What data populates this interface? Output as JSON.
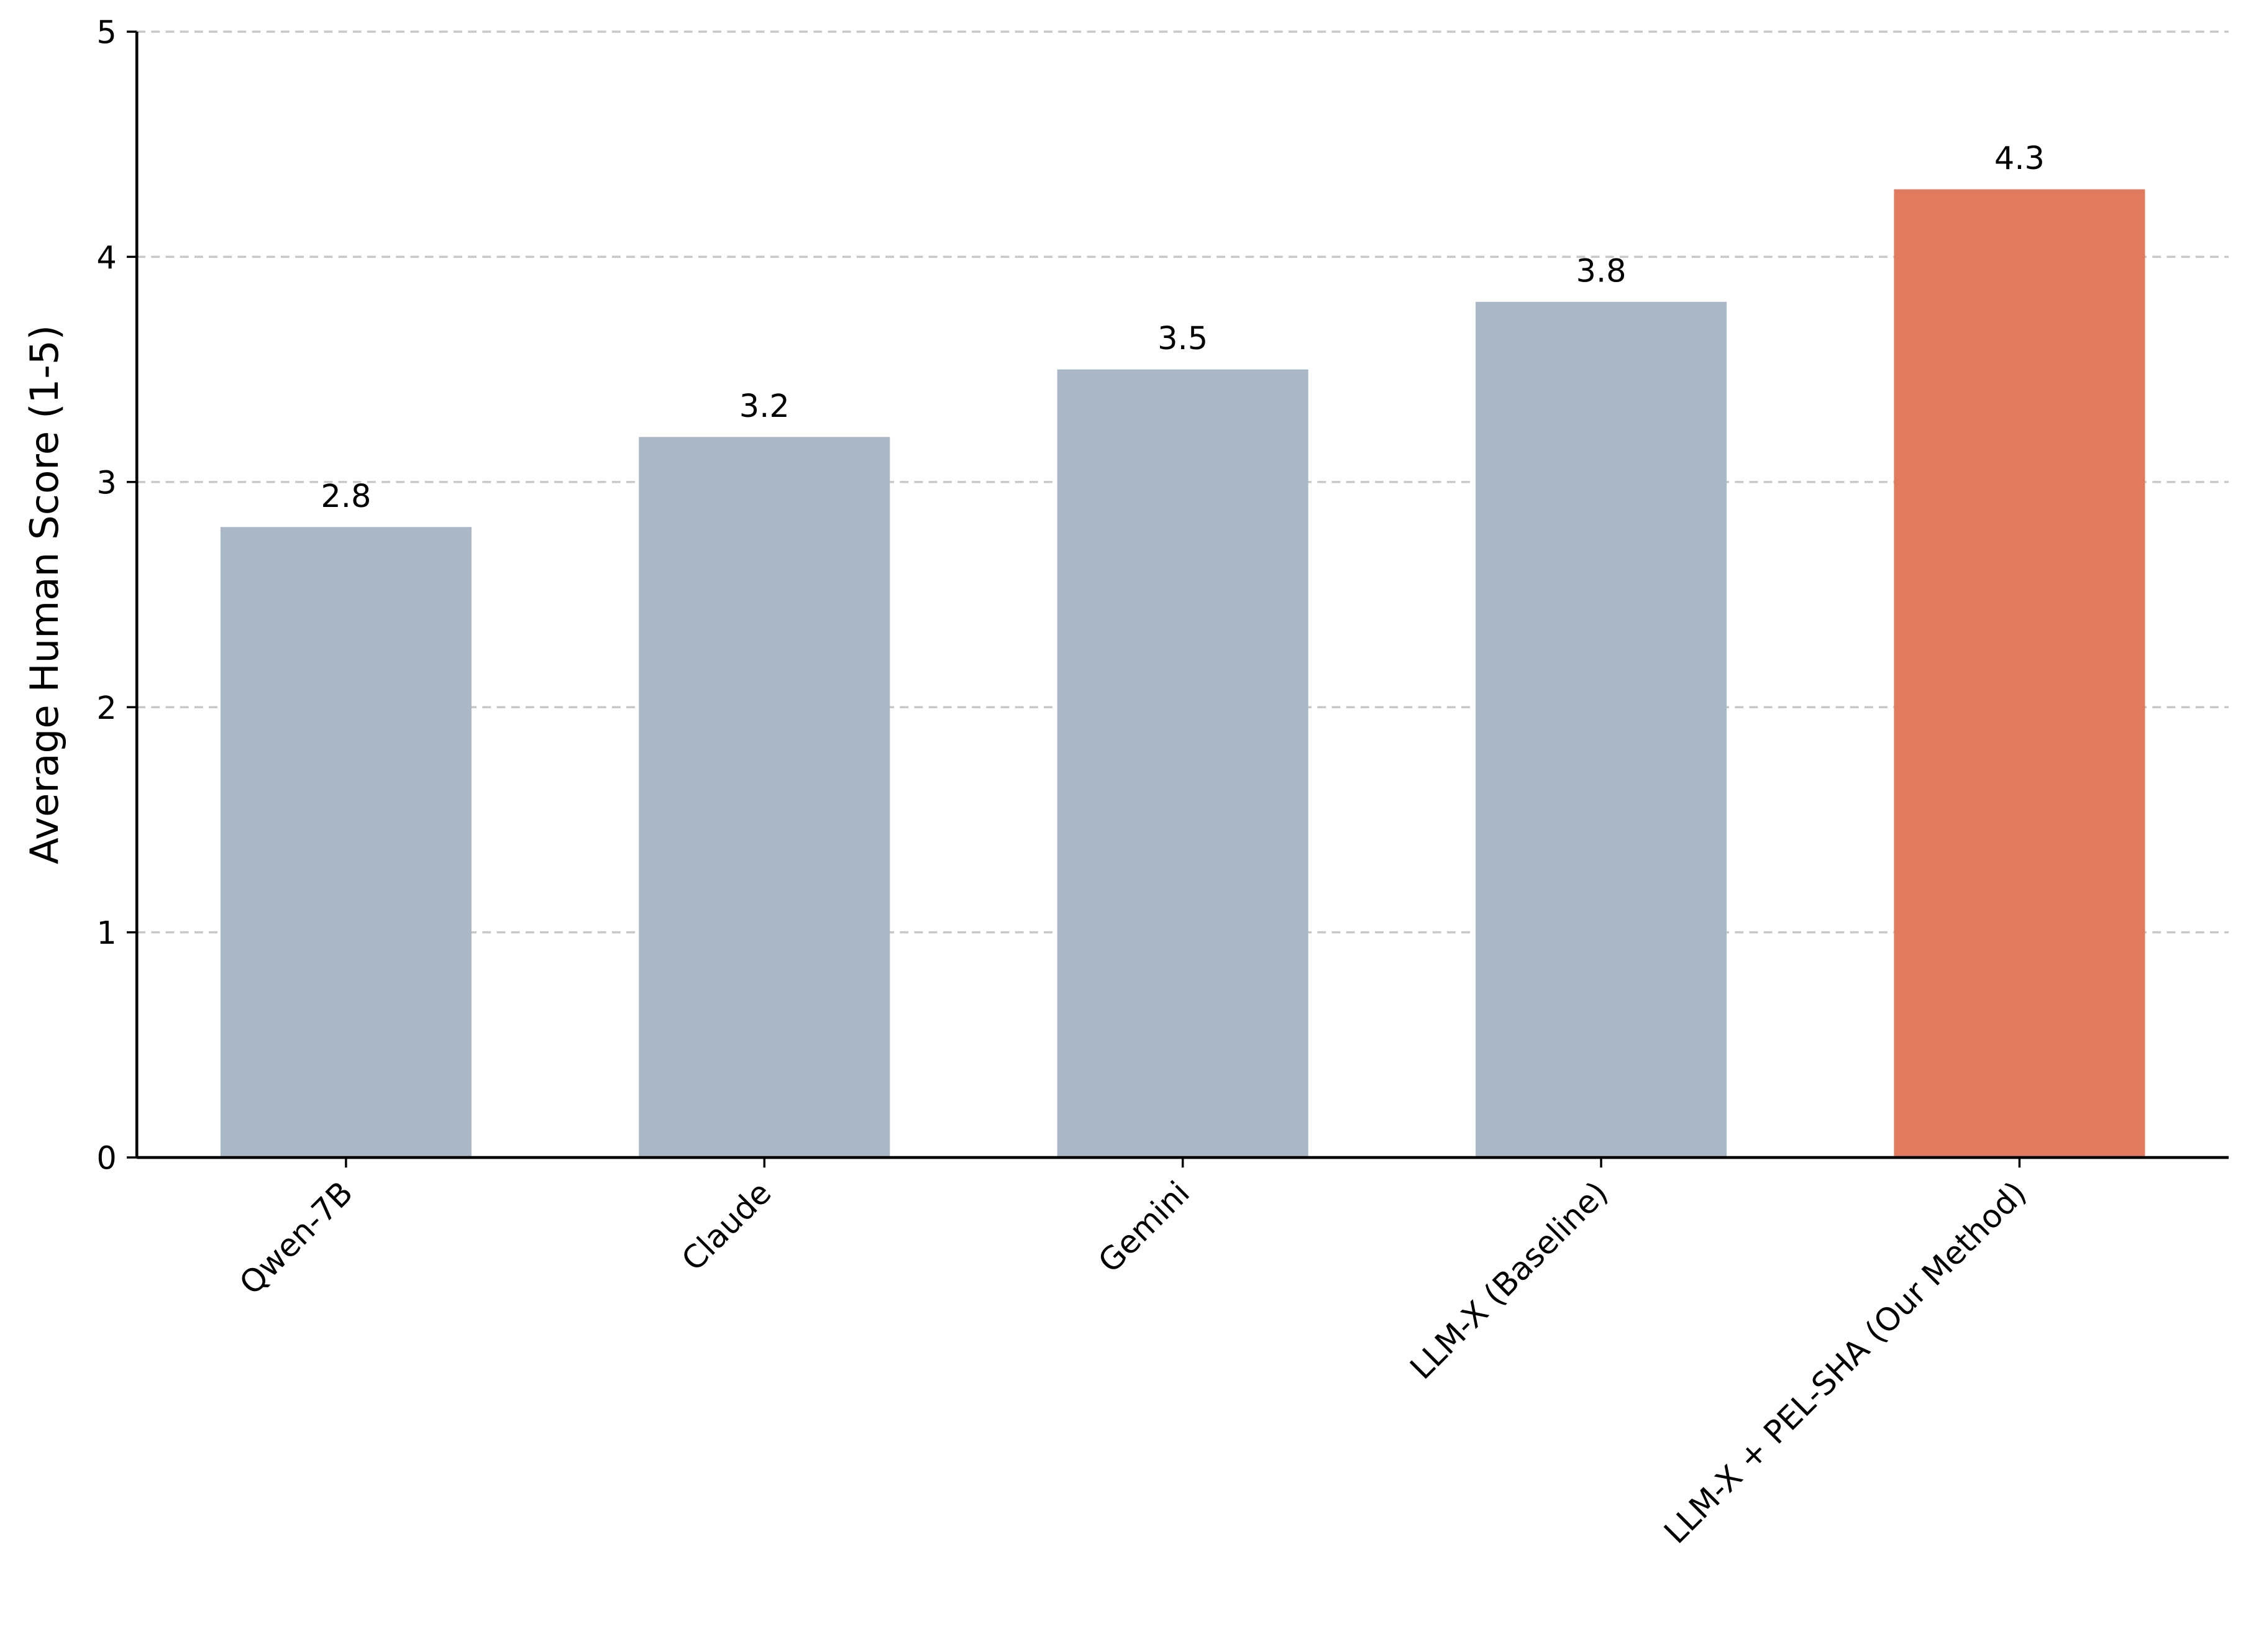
{
  "chart_data": {
    "type": "bar",
    "y_label": "Average Human Score (1-5)",
    "categories": [
      "Qwen-7B",
      "Claude",
      "Gemini",
      "LLM-X (Baseline)",
      "LLM-X + PEL-SHA (Our Method)"
    ],
    "values": [
      2.8,
      3.2,
      3.5,
      3.8,
      4.3
    ],
    "colors": [
      "#a9b7c7",
      "#a9b7c7",
      "#a9b7c7",
      "#a9b7c7",
      "#e07b60"
    ],
    "ylim": [
      0,
      5
    ],
    "yticks": [
      0,
      1,
      2,
      3,
      4,
      5
    ],
    "grid": true
  }
}
